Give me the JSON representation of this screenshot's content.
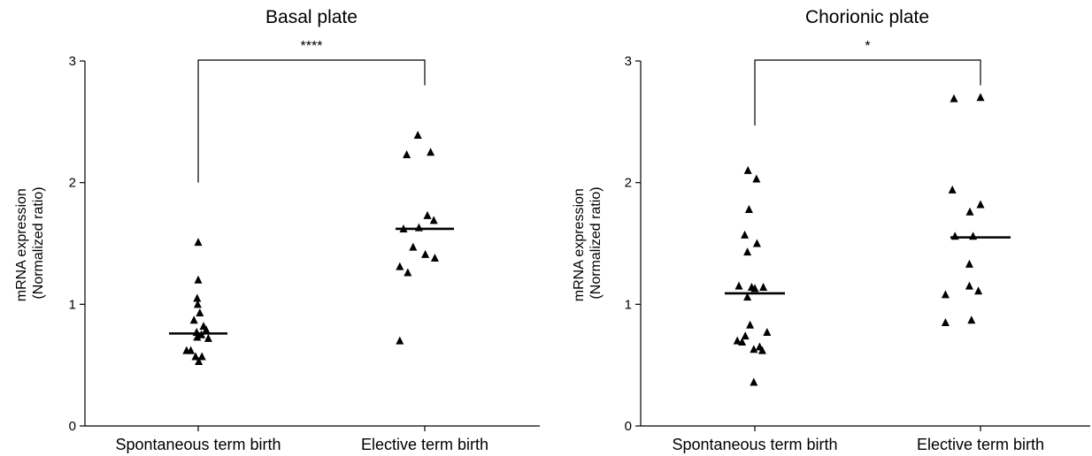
{
  "chart_data": [
    {
      "type": "scatter",
      "title": "Basal plate",
      "ylabel_line1": "mRNA expression",
      "ylabel_line2": "(Normalized ratio)",
      "categories": [
        "Spontaneous term birth",
        "Elective term birth"
      ],
      "ylim": [
        0,
        3
      ],
      "yticks": [
        0,
        1,
        2,
        3
      ],
      "ytick_labels": [
        "0",
        "1",
        "2",
        "3"
      ],
      "significance": "****",
      "medians": [
        0.76,
        1.62
      ],
      "series": [
        {
          "category": "Spontaneous term birth",
          "points": [
            [
              0.0,
              1.51
            ],
            [
              0.0,
              1.2
            ],
            [
              -0.02,
              1.05
            ],
            [
              -0.01,
              1.0
            ],
            [
              0.03,
              0.93
            ],
            [
              -0.08,
              0.87
            ],
            [
              0.1,
              0.82
            ],
            [
              0.15,
              0.79
            ],
            [
              -0.03,
              0.77
            ],
            [
              0.06,
              0.75
            ],
            [
              -0.02,
              0.73
            ],
            [
              0.19,
              0.72
            ],
            [
              -0.14,
              0.62
            ],
            [
              -0.22,
              0.62
            ],
            [
              -0.05,
              0.57
            ],
            [
              0.07,
              0.57
            ],
            [
              0.01,
              0.53
            ]
          ]
        },
        {
          "category": "Elective term birth",
          "points": [
            [
              -0.13,
              2.39
            ],
            [
              -0.34,
              2.23
            ],
            [
              0.11,
              2.25
            ],
            [
              0.05,
              1.73
            ],
            [
              0.17,
              1.69
            ],
            [
              -0.11,
              1.63
            ],
            [
              -0.4,
              1.62
            ],
            [
              -0.22,
              1.47
            ],
            [
              0.01,
              1.41
            ],
            [
              -0.47,
              1.31
            ],
            [
              0.19,
              1.38
            ],
            [
              -0.32,
              1.26
            ],
            [
              -0.47,
              0.7
            ]
          ]
        }
      ]
    },
    {
      "type": "scatter",
      "title": "Chorionic plate",
      "ylabel_line1": "mRNA expression",
      "ylabel_line2": "(Normalized ratio)",
      "categories": [
        "Spontaneous term birth",
        "Elective term birth"
      ],
      "ylim": [
        0,
        3
      ],
      "yticks": [
        0,
        1,
        2,
        3
      ],
      "ytick_labels": [
        "0",
        "1",
        "2",
        "3"
      ],
      "significance": "*",
      "medians": [
        1.09,
        1.55
      ],
      "series": [
        {
          "category": "Spontaneous term birth",
          "points": [
            [
              -0.13,
              2.1
            ],
            [
              0.03,
              2.03
            ],
            [
              -0.11,
              1.78
            ],
            [
              -0.19,
              1.57
            ],
            [
              0.04,
              1.5
            ],
            [
              -0.14,
              1.43
            ],
            [
              -0.3,
              1.15
            ],
            [
              -0.06,
              1.14
            ],
            [
              0.16,
              1.14
            ],
            [
              0.0,
              1.13
            ],
            [
              -0.14,
              1.06
            ],
            [
              -0.09,
              0.83
            ],
            [
              0.23,
              0.77
            ],
            [
              -0.18,
              0.74
            ],
            [
              -0.33,
              0.7
            ],
            [
              -0.24,
              0.69
            ],
            [
              0.09,
              0.65
            ],
            [
              -0.02,
              0.63
            ],
            [
              0.14,
              0.62
            ],
            [
              -0.02,
              0.36
            ]
          ]
        },
        {
          "category": "Elective term birth",
          "points": [
            [
              -0.5,
              2.69
            ],
            [
              0.0,
              2.7
            ],
            [
              -0.53,
              1.94
            ],
            [
              0.0,
              1.82
            ],
            [
              -0.2,
              1.76
            ],
            [
              -0.48,
              1.56
            ],
            [
              -0.14,
              1.56
            ],
            [
              -0.21,
              1.33
            ],
            [
              -0.21,
              1.15
            ],
            [
              -0.66,
              1.08
            ],
            [
              -0.04,
              1.11
            ],
            [
              -0.66,
              0.85
            ],
            [
              -0.17,
              0.87
            ]
          ]
        }
      ]
    }
  ]
}
